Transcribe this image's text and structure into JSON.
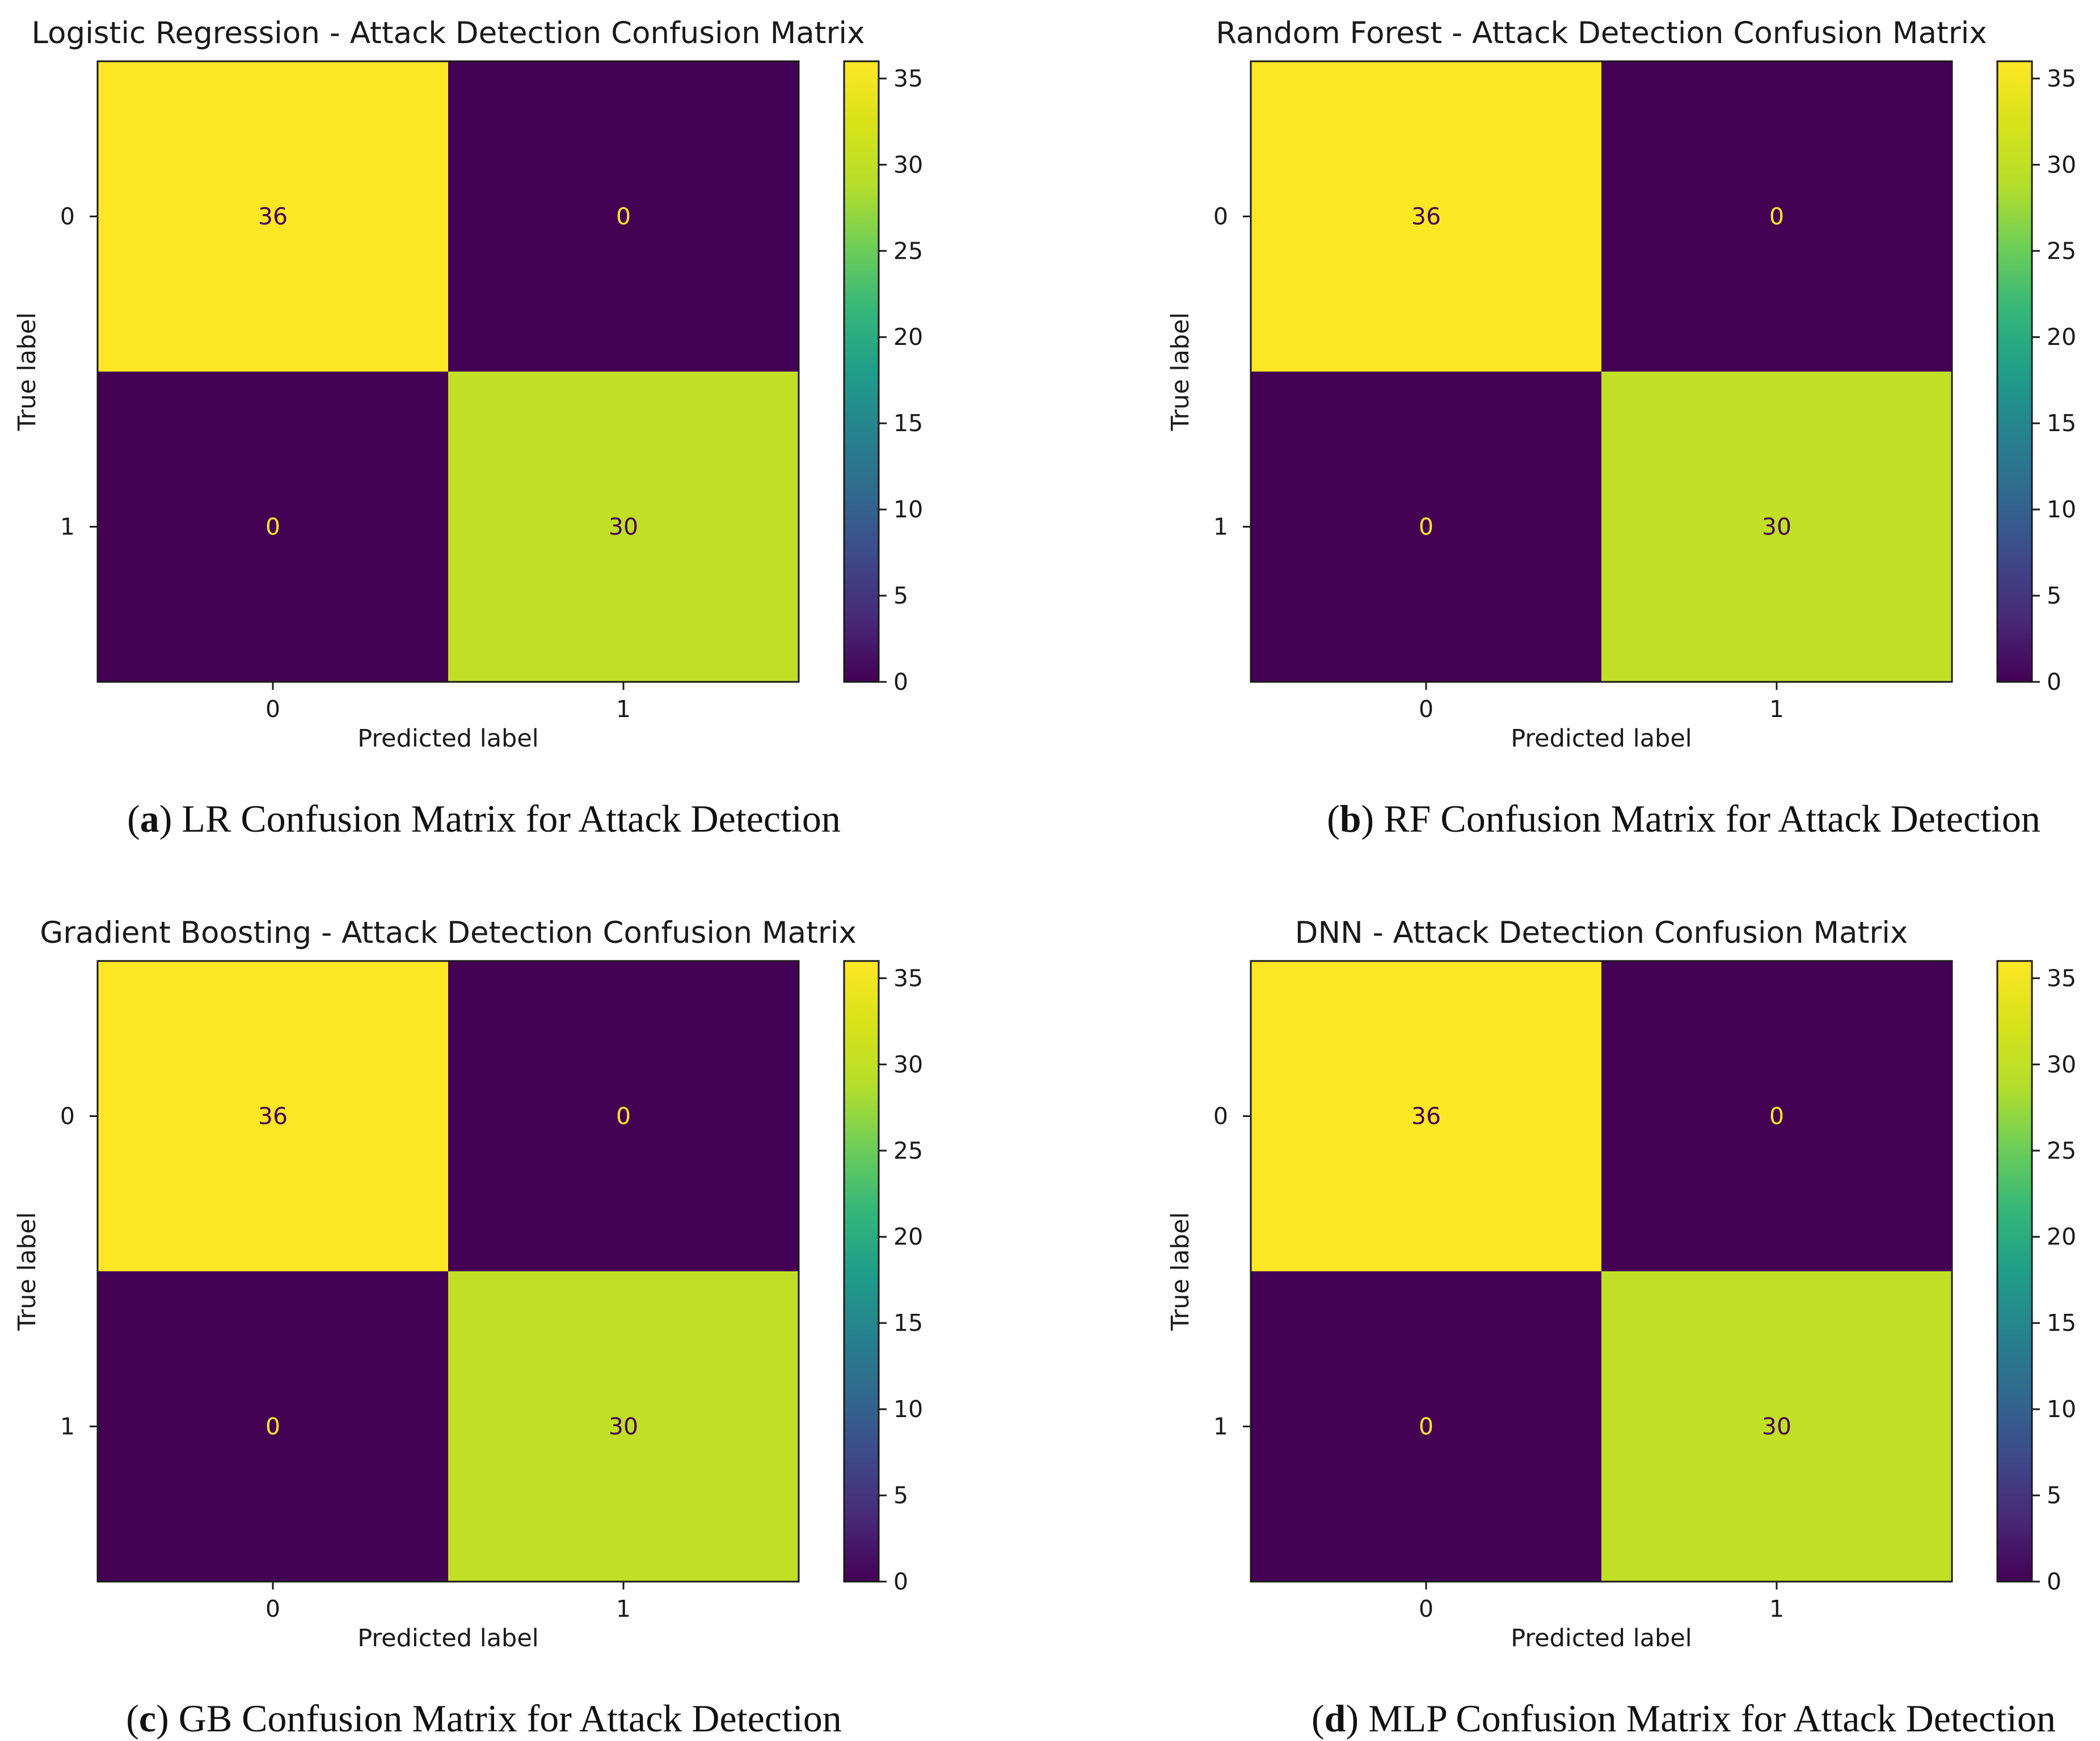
{
  "colors": {
    "low": "#440154",
    "high": "#fde725",
    "mid_green": "#8fd744",
    "text_on_dark": "#fde725",
    "text_on_light": "#440154"
  },
  "chart_data": [
    {
      "type": "heatmap",
      "title": "Logistic Regression - Attack Detection Confusion Matrix",
      "xlabel": "Predicted label",
      "ylabel": "True label",
      "x_categories": [
        "0",
        "1"
      ],
      "y_categories": [
        "0",
        "1"
      ],
      "values": [
        [
          36,
          0
        ],
        [
          0,
          30
        ]
      ],
      "colorbar": {
        "range": [
          0,
          36
        ],
        "ticks": [
          "0",
          "5",
          "10",
          "15",
          "20",
          "25",
          "30",
          "35"
        ]
      },
      "caption": {
        "letter": "a",
        "text": "LR Confusion Matrix for Attack Detection"
      }
    },
    {
      "type": "heatmap",
      "title": "Random Forest - Attack Detection Confusion Matrix",
      "xlabel": "Predicted label",
      "ylabel": "True label",
      "x_categories": [
        "0",
        "1"
      ],
      "y_categories": [
        "0",
        "1"
      ],
      "values": [
        [
          36,
          0
        ],
        [
          0,
          30
        ]
      ],
      "colorbar": {
        "range": [
          0,
          36
        ],
        "ticks": [
          "0",
          "5",
          "10",
          "15",
          "20",
          "25",
          "30",
          "35"
        ]
      },
      "caption": {
        "letter": "b",
        "text": "RF Confusion Matrix for Attack Detection"
      }
    },
    {
      "type": "heatmap",
      "title": "Gradient Boosting - Attack Detection Confusion Matrix",
      "xlabel": "Predicted label",
      "ylabel": "True label",
      "x_categories": [
        "0",
        "1"
      ],
      "y_categories": [
        "0",
        "1"
      ],
      "values": [
        [
          36,
          0
        ],
        [
          0,
          30
        ]
      ],
      "colorbar": {
        "range": [
          0,
          36
        ],
        "ticks": [
          "0",
          "5",
          "10",
          "15",
          "20",
          "25",
          "30",
          "35"
        ]
      },
      "caption": {
        "letter": "c",
        "text": "GB Confusion Matrix for Attack Detection"
      }
    },
    {
      "type": "heatmap",
      "title": "DNN - Attack Detection Confusion Matrix",
      "xlabel": "Predicted label",
      "ylabel": "True label",
      "x_categories": [
        "0",
        "1"
      ],
      "y_categories": [
        "0",
        "1"
      ],
      "values": [
        [
          36,
          0
        ],
        [
          0,
          30
        ]
      ],
      "colorbar": {
        "range": [
          0,
          36
        ],
        "ticks": [
          "0",
          "5",
          "10",
          "15",
          "20",
          "25",
          "30",
          "35"
        ]
      },
      "caption": {
        "letter": "d",
        "text": "MLP Confusion Matrix for Attack Detection"
      }
    }
  ]
}
